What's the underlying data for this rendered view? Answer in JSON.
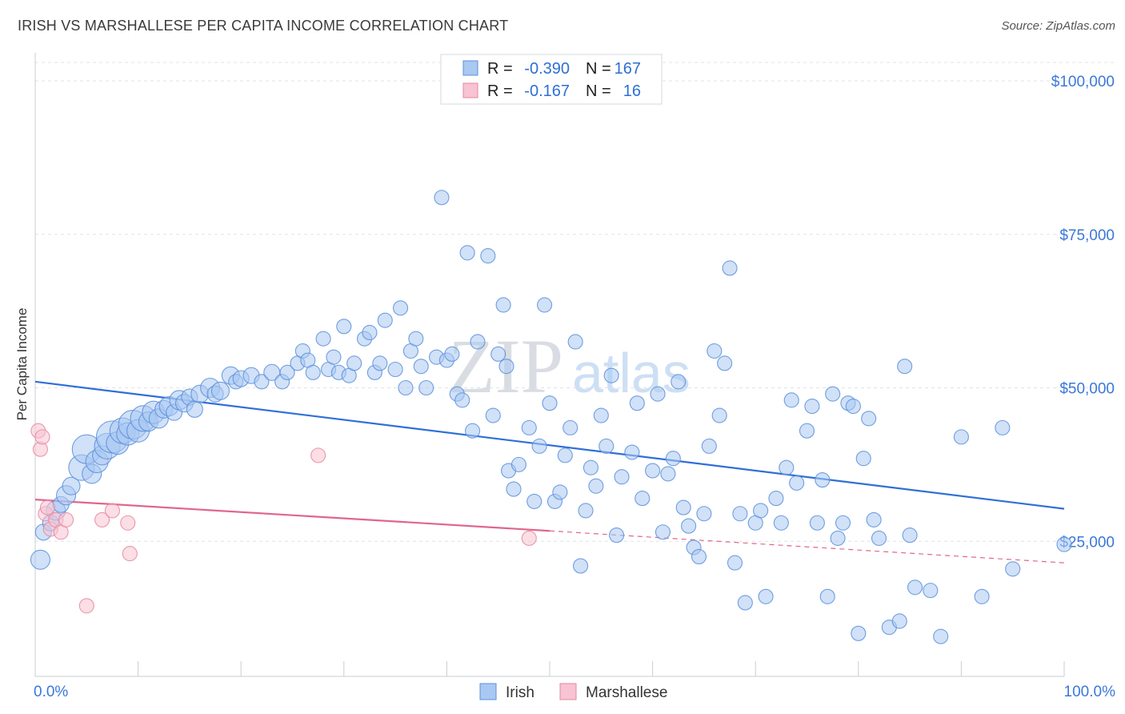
{
  "title": "IRISH VS MARSHALLESE PER CAPITA INCOME CORRELATION CHART",
  "source": "Source: ZipAtlas.com",
  "watermark": {
    "zip": "ZIP",
    "atlas": "atlas"
  },
  "legend": {
    "rows": [
      {
        "r_label": "R =",
        "r_value": "-0.390",
        "n_label": "N =",
        "n_value": "167",
        "color": "#a9c8f2",
        "stroke": "#5b8fd9"
      },
      {
        "r_label": "R =",
        "r_value": "-0.167",
        "n_label": "N =",
        "n_value": "16",
        "color": "#f8c3d2",
        "stroke": "#e6879f"
      }
    ]
  },
  "bottom_legend": [
    {
      "label": "Irish",
      "color": "#a9c8f2",
      "stroke": "#5b8fd9"
    },
    {
      "label": "Marshallese",
      "color": "#f8c3d2",
      "stroke": "#e6879f"
    }
  ],
  "chart_data": {
    "type": "scatter",
    "title": "IRISH VS MARSHALLESE PER CAPITA INCOME CORRELATION CHART",
    "ylabel": "Per Capita Income",
    "xlabel": "",
    "x_tick_labels": [
      "0.0%",
      "100.0%"
    ],
    "y_tick_labels": [
      "$25,000",
      "$50,000",
      "$75,000",
      "$100,000"
    ],
    "y_ticks": [
      25000,
      50000,
      75000,
      100000
    ],
    "xlim": [
      0,
      100
    ],
    "ylim": [
      3000,
      103000
    ],
    "grid": "horizontal dashed",
    "legend_position": "top-center",
    "series": [
      {
        "name": "Irish",
        "color": "#5b8fd9",
        "fill": "#a9c8f2",
        "trend": {
          "x": [
            0,
            100
          ],
          "y": [
            51000,
            30300
          ]
        },
        "points": [
          [
            0.5,
            22000,
            12
          ],
          [
            0.8,
            26500,
            10
          ],
          [
            1.5,
            28000,
            10
          ],
          [
            2,
            30000,
            12
          ],
          [
            2.5,
            31000,
            10
          ],
          [
            3,
            32500,
            12
          ],
          [
            3.5,
            34000,
            11
          ],
          [
            4.5,
            37000,
            16
          ],
          [
            5,
            40000,
            18
          ],
          [
            5.5,
            36000,
            12
          ],
          [
            6,
            38000,
            14
          ],
          [
            6.5,
            39000,
            12
          ],
          [
            7,
            40500,
            16
          ],
          [
            7.5,
            42000,
            20
          ],
          [
            8,
            41000,
            14
          ],
          [
            8.5,
            43000,
            16
          ],
          [
            9,
            42500,
            14
          ],
          [
            9.5,
            44000,
            18
          ],
          [
            10,
            43000,
            14
          ],
          [
            10.5,
            45000,
            16
          ],
          [
            11,
            44500,
            12
          ],
          [
            11.5,
            46000,
            14
          ],
          [
            12,
            45000,
            12
          ],
          [
            12.5,
            46500,
            11
          ],
          [
            13,
            47000,
            12
          ],
          [
            13.5,
            46000,
            10
          ],
          [
            14,
            48000,
            12
          ],
          [
            14.5,
            47500,
            11
          ],
          [
            15,
            48500,
            10
          ],
          [
            15.5,
            46500,
            10
          ],
          [
            16,
            49000,
            11
          ],
          [
            17,
            50000,
            12
          ],
          [
            17.5,
            49000,
            10
          ],
          [
            18,
            49500,
            11
          ],
          [
            19,
            52000,
            11
          ],
          [
            19.5,
            51000,
            9
          ],
          [
            20,
            51500,
            10
          ],
          [
            21,
            52000,
            10
          ],
          [
            22,
            51000,
            9
          ],
          [
            23,
            52500,
            10
          ],
          [
            24,
            51000,
            9
          ],
          [
            24.5,
            52500,
            9
          ],
          [
            25.5,
            54000,
            9
          ],
          [
            26,
            56000,
            9
          ],
          [
            26.5,
            54500,
            9
          ],
          [
            27,
            52500,
            9
          ],
          [
            28,
            58000,
            9
          ],
          [
            28.5,
            53000,
            9
          ],
          [
            29,
            55000,
            9
          ],
          [
            29.5,
            52500,
            9
          ],
          [
            30,
            60000,
            9
          ],
          [
            30.5,
            52000,
            9
          ],
          [
            31,
            54000,
            9
          ],
          [
            32,
            58000,
            9
          ],
          [
            32.5,
            59000,
            9
          ],
          [
            33,
            52500,
            9
          ],
          [
            33.5,
            54000,
            9
          ],
          [
            34,
            61000,
            9
          ],
          [
            35,
            53000,
            9
          ],
          [
            35.5,
            63000,
            9
          ],
          [
            36,
            50000,
            9
          ],
          [
            36.5,
            56000,
            9
          ],
          [
            37,
            58000,
            9
          ],
          [
            37.5,
            53500,
            9
          ],
          [
            38,
            50000,
            9
          ],
          [
            39,
            55000,
            9
          ],
          [
            39.5,
            81000,
            9
          ],
          [
            40,
            54500,
            9
          ],
          [
            40.5,
            55500,
            9
          ],
          [
            41,
            49000,
            9
          ],
          [
            41.5,
            48000,
            9
          ],
          [
            42,
            72000,
            9
          ],
          [
            42.5,
            43000,
            9
          ],
          [
            43,
            57500,
            9
          ],
          [
            44,
            71500,
            9
          ],
          [
            44.5,
            45500,
            9
          ],
          [
            45,
            55500,
            9
          ],
          [
            45.5,
            63500,
            9
          ],
          [
            45.8,
            53500,
            9
          ],
          [
            46,
            36500,
            9
          ],
          [
            46.5,
            33500,
            9
          ],
          [
            47,
            37500,
            9
          ],
          [
            48,
            43500,
            9
          ],
          [
            48.5,
            31500,
            9
          ],
          [
            49,
            40500,
            9
          ],
          [
            49.5,
            63500,
            9
          ],
          [
            50,
            47500,
            9
          ],
          [
            50.5,
            31500,
            9
          ],
          [
            51,
            33000,
            9
          ],
          [
            51.5,
            39000,
            9
          ],
          [
            52,
            43500,
            9
          ],
          [
            52.5,
            57500,
            9
          ],
          [
            53,
            21000,
            9
          ],
          [
            53.5,
            30000,
            9
          ],
          [
            54,
            37000,
            9
          ],
          [
            54.5,
            34000,
            9
          ],
          [
            55,
            45500,
            9
          ],
          [
            55.5,
            40500,
            9
          ],
          [
            56,
            52000,
            9
          ],
          [
            56.5,
            26000,
            9
          ],
          [
            57,
            35500,
            9
          ],
          [
            58,
            39500,
            9
          ],
          [
            58.5,
            47500,
            9
          ],
          [
            59,
            32000,
            9
          ],
          [
            60,
            36500,
            9
          ],
          [
            60.5,
            49000,
            9
          ],
          [
            61,
            26500,
            9
          ],
          [
            61.5,
            36000,
            9
          ],
          [
            62,
            38500,
            9
          ],
          [
            62.5,
            51000,
            9
          ],
          [
            63,
            30500,
            9
          ],
          [
            63.5,
            27500,
            9
          ],
          [
            64,
            24000,
            9
          ],
          [
            64.5,
            22500,
            9
          ],
          [
            65,
            29500,
            9
          ],
          [
            65.5,
            40500,
            9
          ],
          [
            66,
            56000,
            9
          ],
          [
            66.5,
            45500,
            9
          ],
          [
            67,
            54000,
            9
          ],
          [
            67.5,
            69500,
            9
          ],
          [
            68,
            21500,
            9
          ],
          [
            68.5,
            29500,
            9
          ],
          [
            69,
            15000,
            9
          ],
          [
            70,
            28000,
            9
          ],
          [
            70.5,
            30000,
            9
          ],
          [
            71,
            16000,
            9
          ],
          [
            72,
            32000,
            9
          ],
          [
            72.5,
            28000,
            9
          ],
          [
            73,
            37000,
            9
          ],
          [
            73.5,
            48000,
            9
          ],
          [
            74,
            34500,
            9
          ],
          [
            75,
            43000,
            9
          ],
          [
            75.5,
            47000,
            9
          ],
          [
            76,
            28000,
            9
          ],
          [
            76.5,
            35000,
            9
          ],
          [
            77,
            16000,
            9
          ],
          [
            77.5,
            49000,
            9
          ],
          [
            78,
            25500,
            9
          ],
          [
            78.5,
            28000,
            9
          ],
          [
            79,
            47500,
            9
          ],
          [
            79.5,
            47000,
            9
          ],
          [
            80,
            10000,
            9
          ],
          [
            80.5,
            38500,
            9
          ],
          [
            81,
            45000,
            9
          ],
          [
            81.5,
            28500,
            9
          ],
          [
            82,
            25500,
            9
          ],
          [
            83,
            11000,
            9
          ],
          [
            84,
            12000,
            9
          ],
          [
            84.5,
            53500,
            9
          ],
          [
            85,
            26000,
            9
          ],
          [
            85.5,
            17500,
            9
          ],
          [
            87,
            17000,
            9
          ],
          [
            88,
            9500,
            9
          ],
          [
            90,
            42000,
            9
          ],
          [
            92,
            16000,
            9
          ],
          [
            94,
            43500,
            9
          ],
          [
            95,
            20500,
            9
          ],
          [
            100,
            24500,
            9
          ]
        ]
      },
      {
        "name": "Marshallese",
        "color": "#e6879f",
        "fill": "#f8c3d2",
        "trend": {
          "x": [
            0,
            50
          ],
          "y": [
            31800,
            26700
          ]
        },
        "trend_dashed": {
          "x": [
            50,
            100
          ],
          "y": [
            26700,
            21500
          ]
        },
        "points": [
          [
            0.3,
            43000,
            9
          ],
          [
            0.5,
            40000,
            9
          ],
          [
            0.7,
            42000,
            9
          ],
          [
            1,
            29500,
            9
          ],
          [
            1.2,
            30500,
            9
          ],
          [
            1.5,
            27000,
            9
          ],
          [
            2,
            28500,
            9
          ],
          [
            2.5,
            26500,
            9
          ],
          [
            3,
            28500,
            9
          ],
          [
            5,
            14500,
            9
          ],
          [
            6.5,
            28500,
            9
          ],
          [
            7.5,
            30000,
            9
          ],
          [
            9,
            28000,
            9
          ],
          [
            9.2,
            23000,
            9
          ],
          [
            27.5,
            39000,
            9
          ],
          [
            48,
            25500,
            9
          ]
        ]
      }
    ]
  }
}
